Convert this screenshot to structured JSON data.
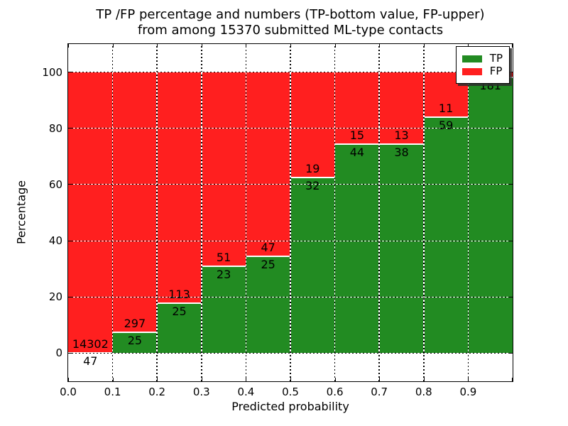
{
  "figure": {
    "title_line1": "TP /FP percentage and numbers (TP-bottom value, FP-upper)",
    "title_line2": "from among 15370 submitted ML-type contacts"
  },
  "chart_data": {
    "type": "bar",
    "variant": "stacked-percentage-histogram",
    "title": "TP /FP percentage and numbers (TP-bottom value, FP-upper)\nfrom among 15370 submitted ML-type contacts",
    "total_contacts": 15370,
    "xlabel": "Predicted probability",
    "ylabel": "Percentage",
    "xlim": [
      0.0,
      1.0
    ],
    "ylim": [
      -10,
      110
    ],
    "bin_width": 0.1,
    "grid": true,
    "x_tick_labels": [
      "0.0",
      "0.1",
      "0.2",
      "0.3",
      "0.4",
      "0.5",
      "0.6",
      "0.7",
      "0.8",
      "0.9"
    ],
    "y_tick_values": [
      0,
      20,
      40,
      60,
      80,
      100
    ],
    "colors": {
      "tp": "#228B22",
      "fp": "#ff1f1f",
      "label_text": "#000000"
    },
    "legend": {
      "position": "upper-right",
      "entries": [
        {
          "label": "TP",
          "color": "#228B22"
        },
        {
          "label": "FP",
          "color": "#ff1f1f"
        }
      ]
    },
    "bins": [
      {
        "x_start": 0.0,
        "x_end": 0.1,
        "tp_count": 47,
        "fp_count": 14302,
        "tp_pct": 0.33
      },
      {
        "x_start": 0.1,
        "x_end": 0.2,
        "tp_count": 25,
        "fp_count": 297,
        "tp_pct": 7.76
      },
      {
        "x_start": 0.2,
        "x_end": 0.3,
        "tp_count": 25,
        "fp_count": 113,
        "tp_pct": 18.12
      },
      {
        "x_start": 0.3,
        "x_end": 0.4,
        "tp_count": 23,
        "fp_count": 51,
        "tp_pct": 31.08
      },
      {
        "x_start": 0.4,
        "x_end": 0.5,
        "tp_count": 25,
        "fp_count": 47,
        "tp_pct": 34.72
      },
      {
        "x_start": 0.5,
        "x_end": 0.6,
        "tp_count": 32,
        "fp_count": 19,
        "tp_pct": 62.75
      },
      {
        "x_start": 0.6,
        "x_end": 0.7,
        "tp_count": 44,
        "fp_count": 15,
        "tp_pct": 74.58
      },
      {
        "x_start": 0.7,
        "x_end": 0.8,
        "tp_count": 38,
        "fp_count": 13,
        "tp_pct": 74.51
      },
      {
        "x_start": 0.8,
        "x_end": 0.9,
        "tp_count": 59,
        "fp_count": 11,
        "tp_pct": 84.29
      },
      {
        "x_start": 0.9,
        "x_end": 1.0,
        "tp_count": 181,
        "fp_count": null,
        "tp_pct": 98.4
      }
    ]
  }
}
